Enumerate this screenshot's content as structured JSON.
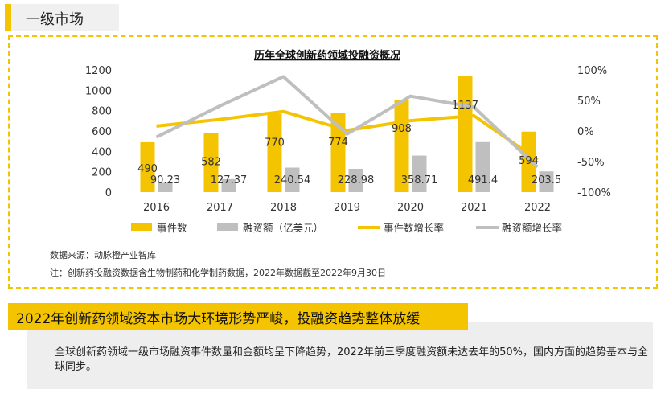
{
  "section": {
    "title": "一级市场"
  },
  "chart_data": {
    "type": "bar",
    "title": "历年全球创新药领域投融资概况",
    "categories": [
      "2016",
      "2017",
      "2018",
      "2019",
      "2020",
      "2021",
      "2022"
    ],
    "series": [
      {
        "name": "事件数",
        "kind": "bar",
        "axis": "left",
        "color": "#f5c400",
        "values": [
          490,
          582,
          770,
          774,
          908,
          1137,
          594
        ],
        "labels": [
          "490",
          "582",
          "770",
          "774",
          "908",
          "1137",
          "594"
        ]
      },
      {
        "name": "融资额（亿美元）",
        "kind": "bar",
        "axis": "left",
        "color": "#bfbfbf",
        "values": [
          90.23,
          127.37,
          240.54,
          228.98,
          358.71,
          491.4,
          203.5
        ],
        "labels": [
          "90.23",
          "127.37",
          "240.54",
          "228.98",
          "358.71",
          "491.4",
          "203.5"
        ]
      },
      {
        "name": "事件数增长率",
        "kind": "line",
        "axis": "right",
        "color": "#f5c400",
        "values": [
          8,
          19,
          32,
          1,
          17,
          25,
          -47
        ]
      },
      {
        "name": "融资额增长率",
        "kind": "line",
        "axis": "right",
        "color": "#bfbfbf",
        "values": [
          -10,
          41,
          89,
          -5,
          57,
          39,
          -59
        ]
      }
    ],
    "y_left": {
      "range": [
        0,
        1200
      ],
      "ticks": [
        "0",
        "200",
        "400",
        "600",
        "800",
        "1000",
        "1200"
      ]
    },
    "y_right": {
      "range": [
        -100,
        100
      ],
      "ticks": [
        "-100%",
        "-50%",
        "0%",
        "50%",
        "100%"
      ]
    },
    "grid": false,
    "legend_position": "bottom"
  },
  "notes": {
    "source": "数据来源：动脉橙产业智库",
    "note": "注：创新药投融资数据含生物制药和化学制药数据，2022年数据截至2022年9月30日"
  },
  "banner": {
    "text": "2022年创新药领域资本市场大环境形势严峻，投融资趋势整体放缓"
  },
  "summary": {
    "text": "全球创新药领域一级市场融资事件数量和金额均呈下降趋势，2022年前三季度融资额未达去年的50%，国内方面的趋势基本与全球同步。"
  },
  "colors": {
    "accent": "#f5c400",
    "gray": "#bfbfbf"
  }
}
